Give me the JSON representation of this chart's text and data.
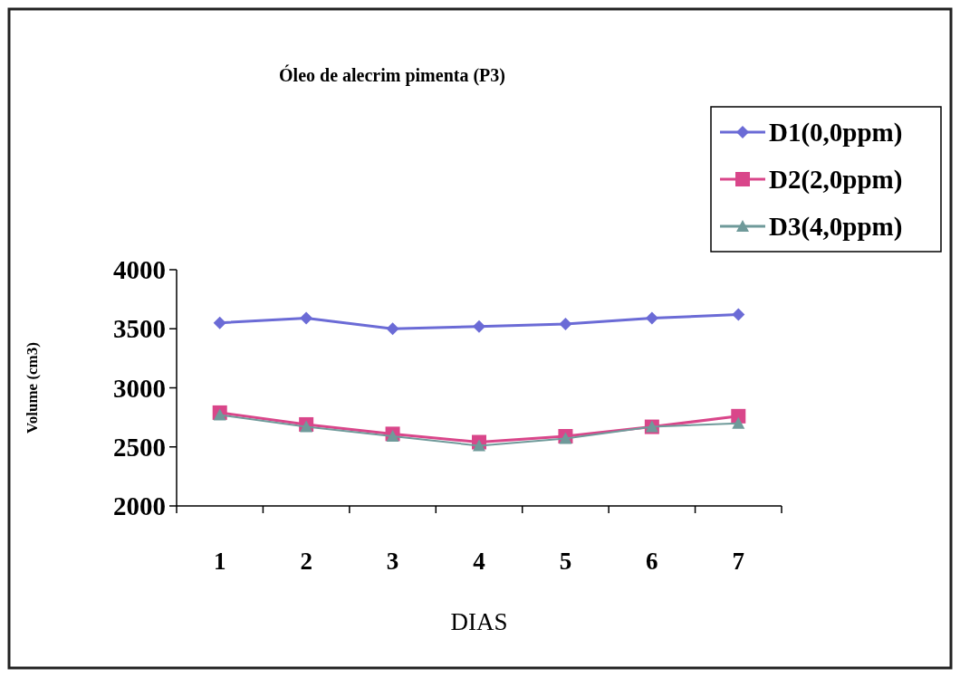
{
  "chart_data": {
    "type": "line",
    "title": "Óleo de alecrim pimenta (P3)",
    "xlabel": "DIAS",
    "ylabel": "Volume (cm3)",
    "categories": [
      "1",
      "2",
      "3",
      "4",
      "5",
      "6",
      "7"
    ],
    "series": [
      {
        "name": "D1(0,0ppm)",
        "color": "#6b6bd6",
        "marker": "diamond",
        "values": [
          3550,
          3590,
          3500,
          3520,
          3540,
          3590,
          3620
        ]
      },
      {
        "name": "D2(2,0ppm)",
        "color": "#d9468a",
        "marker": "square",
        "values": [
          2790,
          2690,
          2610,
          2540,
          2590,
          2670,
          2760
        ]
      },
      {
        "name": "D3(4,0ppm)",
        "color": "#6f9a9a",
        "marker": "triangle",
        "values": [
          2770,
          2670,
          2590,
          2510,
          2570,
          2670,
          2700
        ]
      }
    ],
    "ylim": [
      2000,
      4000
    ],
    "yticks": [
      2000,
      2500,
      3000,
      3500,
      4000
    ],
    "grid": false,
    "legend": "top right"
  }
}
